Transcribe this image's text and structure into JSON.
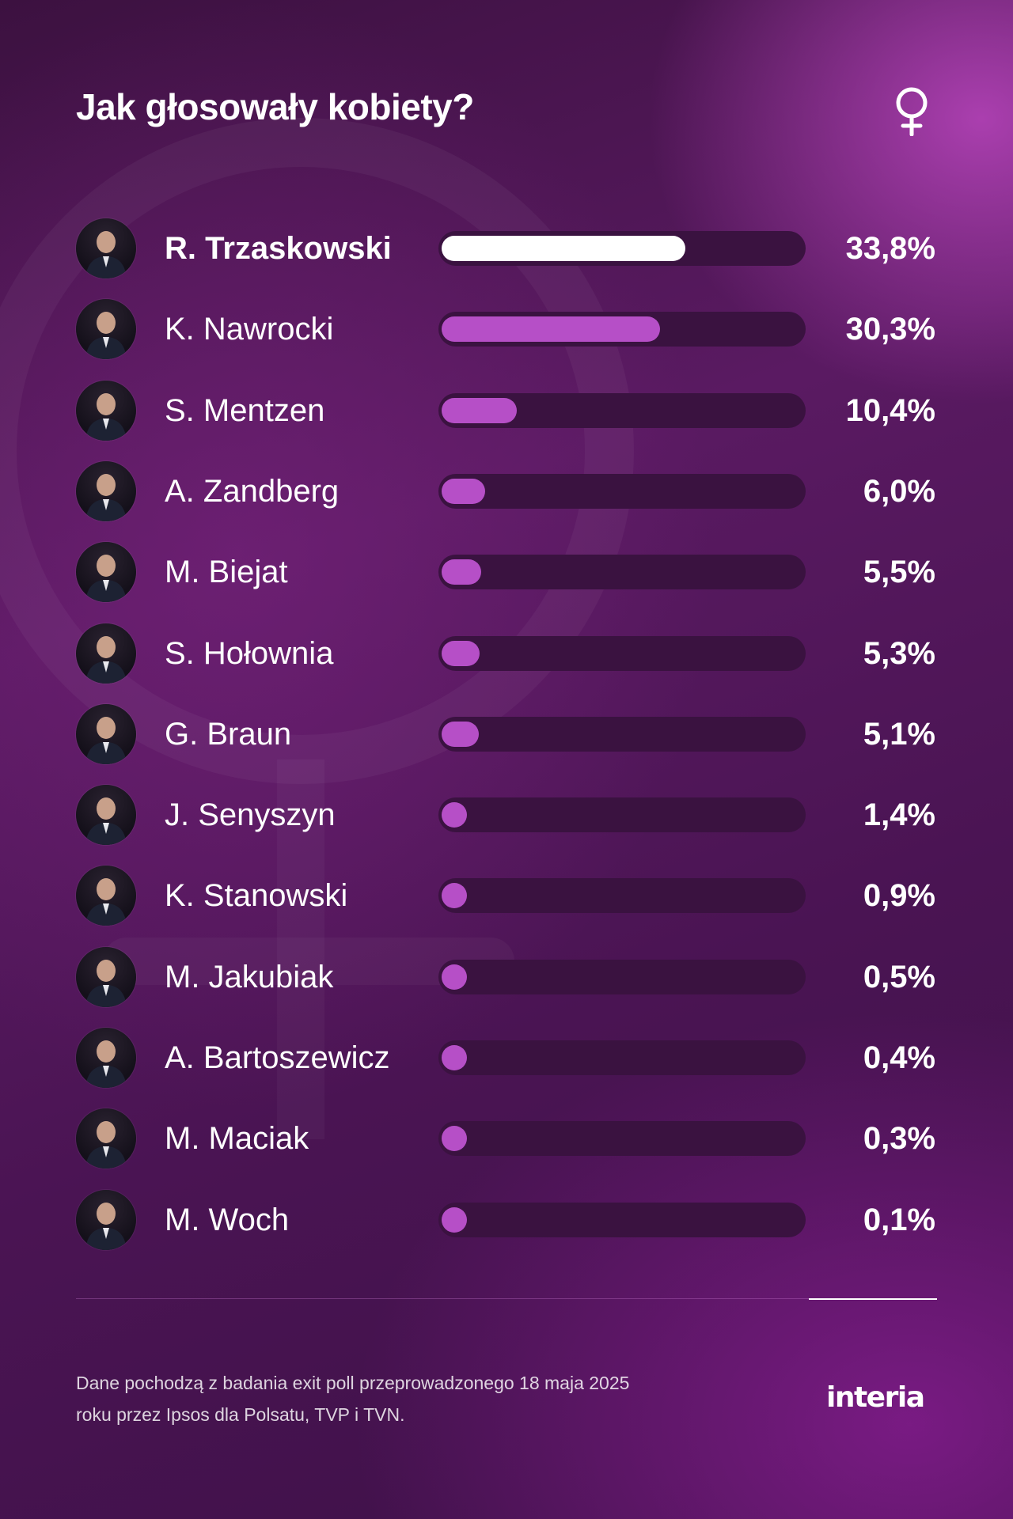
{
  "title": "Jak głosowały kobiety?",
  "icons": {
    "header": "female-symbol-icon",
    "background": "female-symbol-watermark"
  },
  "colors": {
    "leader_bar": "#ffffff",
    "bar": "#b64fc7",
    "track": "#3a1240",
    "background": "#4a1453"
  },
  "chart_data": {
    "type": "bar",
    "orientation": "horizontal",
    "title": "Jak głosowały kobiety?",
    "unit": "%",
    "xlim": [
      0,
      50
    ],
    "categories": [
      "R. Trzaskowski",
      "K. Nawrocki",
      "S. Mentzen",
      "A. Zandberg",
      "M. Biejat",
      "S. Hołownia",
      "G. Braun",
      "J. Senyszyn",
      "K. Stanowski",
      "M. Jakubiak",
      "A. Bartoszewicz",
      "M. Maciak",
      "M. Woch"
    ],
    "values": [
      33.8,
      30.3,
      10.4,
      6.0,
      5.5,
      5.3,
      5.1,
      1.4,
      0.9,
      0.5,
      0.4,
      0.3,
      0.1
    ],
    "labels": [
      "33,8%",
      "30,3%",
      "10,4%",
      "6,0%",
      "5,5%",
      "5,3%",
      "5,1%",
      "1,4%",
      "0,9%",
      "0,5%",
      "0,4%",
      "0,3%",
      "0,1%"
    ]
  },
  "footer": {
    "source_line1": "Dane pochodzą z badania exit poll przeprowadzonego 18 maja 2025",
    "source_line2": "roku przez Ipsos dla Polsatu, TVP i TVN.",
    "logo": "interia"
  }
}
